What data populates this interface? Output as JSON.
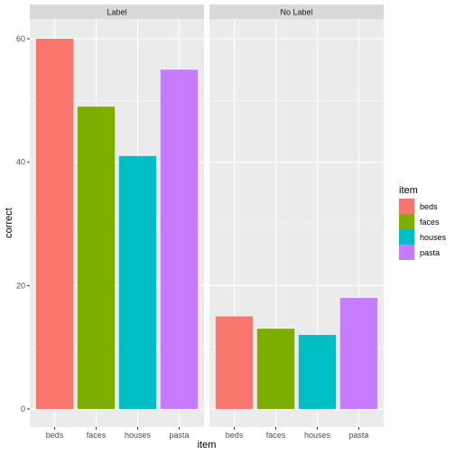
{
  "chart_data": {
    "type": "bar",
    "facet_labels": [
      "Label",
      "No Label"
    ],
    "categories": [
      "beds",
      "faces",
      "houses",
      "pasta"
    ],
    "facets": [
      {
        "name": "Label",
        "values": [
          60,
          49,
          41,
          55
        ]
      },
      {
        "name": "No Label",
        "values": [
          15,
          13,
          12,
          18
        ]
      }
    ],
    "xlabel": "item",
    "ylabel": "correct",
    "ylim": [
      0,
      60
    ],
    "yticks": [
      "0",
      "20",
      "40",
      "60"
    ],
    "grid": true,
    "legend": {
      "title": "item",
      "placement": "right",
      "entries": [
        "beds",
        "faces",
        "houses",
        "pasta"
      ]
    },
    "colors": {
      "beds": "#F8766D",
      "faces": "#7CAE00",
      "houses": "#00BFC4",
      "pasta": "#C77CFF"
    },
    "panel_background": "#EBEBEB",
    "strip_background": "#D9D9D9",
    "gridline_color": "#FFFFFF"
  }
}
